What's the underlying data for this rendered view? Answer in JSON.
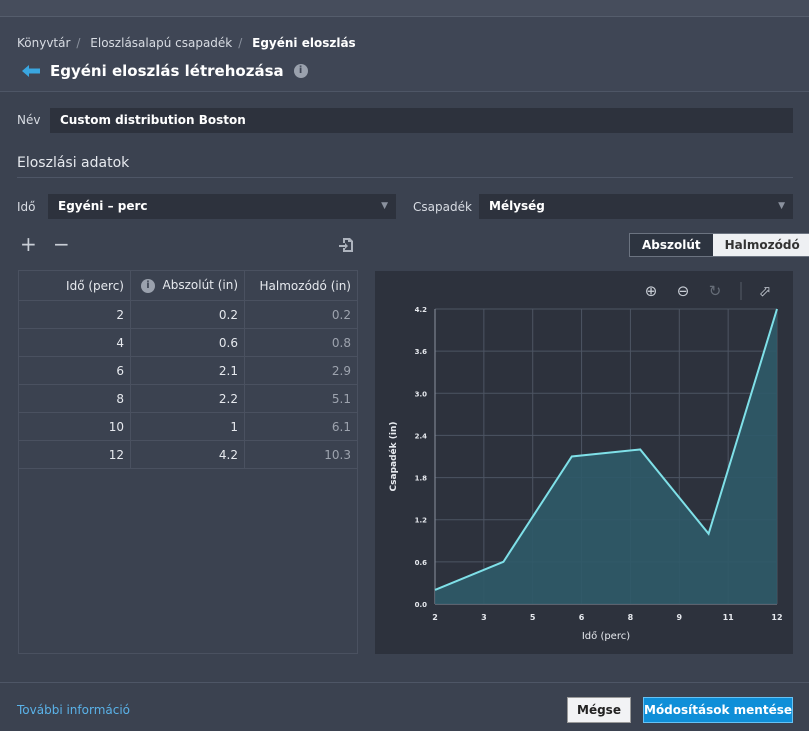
{
  "breadcrumb": [
    "Könyvtár",
    "Eloszlásalapú csapadék",
    "Egyéni eloszlás"
  ],
  "title": "Egyéni eloszlás létrehozása",
  "name_label": "Név",
  "name_value": "Custom distribution Boston",
  "section_title": "Eloszlási adatok",
  "time_label": "Idő",
  "time_value": "Egyéni – perc",
  "precip_label": "Csapadék",
  "precip_value": "Mélység",
  "toggle": {
    "absolute": "Abszolút",
    "cumulative": "Halmozódó",
    "selected": "Abszolút"
  },
  "table": {
    "headers": [
      "Idő (perc)",
      "Abszolút (in)",
      "Halmozódó (in)"
    ],
    "rows": [
      [
        "2",
        "0.2",
        "0.2"
      ],
      [
        "4",
        "0.6",
        "0.8"
      ],
      [
        "6",
        "2.1",
        "2.9"
      ],
      [
        "8",
        "2.2",
        "5.1"
      ],
      [
        "10",
        "1",
        "6.1"
      ],
      [
        "12",
        "4.2",
        "10.3"
      ]
    ]
  },
  "chart_data": {
    "type": "area",
    "xlabel": "Idő (perc)",
    "ylabel": "Csapadék (in)",
    "x": [
      2,
      4,
      6,
      8,
      10,
      12
    ],
    "y": [
      0.2,
      0.6,
      2.1,
      2.2,
      1,
      4.2
    ],
    "xlim": [
      2,
      12
    ],
    "ylim": [
      0,
      4.2
    ],
    "xticks": [
      "2",
      "3",
      "5",
      "6",
      "8",
      "9",
      "11",
      "12"
    ],
    "yticks": [
      "0.0",
      "0.6",
      "1.2",
      "1.8",
      "2.4",
      "3.0",
      "3.6",
      "4.2"
    ],
    "grid": true,
    "line_color": "#7fe0e8",
    "fill_color": "#2f5a68"
  },
  "footer": {
    "more_info": "További információ",
    "cancel": "Mégse",
    "save": "Módosítások mentése"
  }
}
